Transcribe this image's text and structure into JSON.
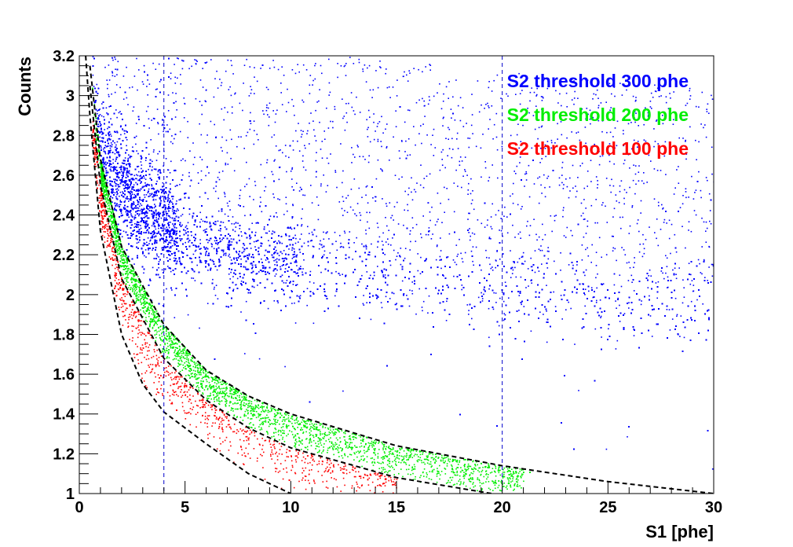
{
  "chart_data": {
    "type": "scatter",
    "title": "",
    "xlabel": "S1 [phe]",
    "ylabel": "Counts",
    "xlim": [
      0,
      30
    ],
    "ylim": [
      1,
      3.2
    ],
    "x_ticks": [
      {
        "value": 0,
        "label": "0"
      },
      {
        "value": 5,
        "label": "5"
      },
      {
        "value": 10,
        "label": "10"
      },
      {
        "value": 15,
        "label": "15"
      },
      {
        "value": 20,
        "label": "20"
      },
      {
        "value": 25,
        "label": "25"
      },
      {
        "value": 30,
        "label": "30"
      }
    ],
    "y_ticks": [
      {
        "value": 1.0,
        "label": "1"
      },
      {
        "value": 1.2,
        "label": "1.2"
      },
      {
        "value": 1.4,
        "label": "1.4"
      },
      {
        "value": 1.6,
        "label": "1.6"
      },
      {
        "value": 1.8,
        "label": "1.8"
      },
      {
        "value": 2.0,
        "label": "2"
      },
      {
        "value": 2.2,
        "label": "2.2"
      },
      {
        "value": 2.4,
        "label": "2.4"
      },
      {
        "value": 2.6,
        "label": "2.6"
      },
      {
        "value": 2.8,
        "label": "2.8"
      },
      {
        "value": 3.0,
        "label": "3"
      },
      {
        "value": 3.2,
        "label": "3.2"
      }
    ],
    "grid": false,
    "legend_position": "top-right",
    "series": [
      {
        "name": "S2 threshold 300 phe",
        "color": "#0000ff"
      },
      {
        "name": "S2 threshold 200 phe",
        "color": "#00ee00"
      },
      {
        "name": "S2 threshold 100 phe",
        "color": "#ff0000"
      }
    ],
    "band_center": [
      {
        "x": 0.8,
        "y": 2.78
      },
      {
        "x": 1.5,
        "y": 2.62
      },
      {
        "x": 2.5,
        "y": 2.47
      },
      {
        "x": 4,
        "y": 2.34
      },
      {
        "x": 6,
        "y": 2.25
      },
      {
        "x": 8,
        "y": 2.19
      },
      {
        "x": 10,
        "y": 2.15
      },
      {
        "x": 15,
        "y": 2.08
      },
      {
        "x": 20,
        "y": 2.02
      },
      {
        "x": 25,
        "y": 1.98
      },
      {
        "x": 30,
        "y": 1.94
      }
    ],
    "threshold_curves": [
      {
        "name": "curve-300",
        "color": "#000000",
        "style": "dashed",
        "points": [
          {
            "x": 0.5,
            "y": 3.15
          },
          {
            "x": 1,
            "y": 2.68
          },
          {
            "x": 2,
            "y": 2.24
          },
          {
            "x": 4,
            "y": 1.85
          },
          {
            "x": 6,
            "y": 1.62
          },
          {
            "x": 8,
            "y": 1.49
          },
          {
            "x": 10,
            "y": 1.4
          },
          {
            "x": 15,
            "y": 1.24
          },
          {
            "x": 20,
            "y": 1.14
          },
          {
            "x": 25,
            "y": 1.06
          },
          {
            "x": 30,
            "y": 1.0
          }
        ]
      },
      {
        "name": "curve-200",
        "color": "#000000",
        "style": "dashed",
        "points": [
          {
            "x": 0.5,
            "y": 3.05
          },
          {
            "x": 1,
            "y": 2.55
          },
          {
            "x": 2,
            "y": 2.08
          },
          {
            "x": 4,
            "y": 1.68
          },
          {
            "x": 6,
            "y": 1.47
          },
          {
            "x": 8,
            "y": 1.33
          },
          {
            "x": 10,
            "y": 1.23
          },
          {
            "x": 15,
            "y": 1.08
          },
          {
            "x": 19.5,
            "y": 1.0
          }
        ]
      },
      {
        "name": "curve-100",
        "color": "#000000",
        "style": "dashed",
        "points": [
          {
            "x": 0.3,
            "y": 3.2
          },
          {
            "x": 0.5,
            "y": 2.9
          },
          {
            "x": 1,
            "y": 2.32
          },
          {
            "x": 2,
            "y": 1.8
          },
          {
            "x": 3,
            "y": 1.55
          },
          {
            "x": 4,
            "y": 1.41
          },
          {
            "x": 6,
            "y": 1.25
          },
          {
            "x": 8,
            "y": 1.1
          },
          {
            "x": 10,
            "y": 1.0
          }
        ]
      }
    ],
    "vertical_lines": [
      {
        "x": 4,
        "color": "#0000cc",
        "style": "dashed"
      },
      {
        "x": 20,
        "color": "#0000cc",
        "style": "dashed"
      }
    ]
  }
}
